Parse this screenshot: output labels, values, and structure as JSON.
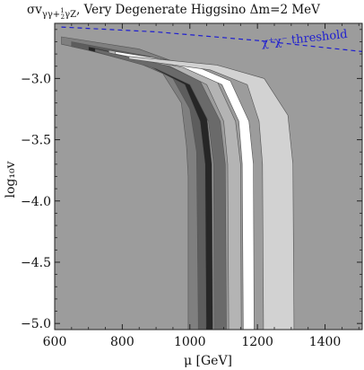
{
  "chart_data": {
    "type": "contour",
    "title": "σv_{γγ+½γZ}, Very Degenerate Higgsino Δm=2 MeV",
    "title_parts": {
      "main": "σv",
      "subscript": "γγ+",
      "frac_num": "1",
      "frac_den": "2",
      "subscript_tail": "γZ",
      "rest": ", Very Degenerate Higgsino Δm=2 MeV"
    },
    "xlabel": "μ [GeV]",
    "ylabel": "log₁₀v",
    "xlim": [
      600,
      1510
    ],
    "ylim": [
      -5.05,
      -2.55
    ],
    "x_ticks": [
      600,
      800,
      1000,
      1200,
      1400
    ],
    "x_tick_labels": [
      "600",
      "800",
      "1000",
      "1200",
      "1400"
    ],
    "y_ticks": [
      -3.0,
      -3.5,
      -4.0,
      -4.5,
      -5.0
    ],
    "y_tick_labels": [
      "−3.0",
      "−3.5",
      "−4.0",
      "−4.5",
      "−5.0"
    ],
    "grid": false,
    "background_color": "#9c9c9c",
    "annotation": {
      "label": "χ⁺χ⁻ threshold",
      "color": "#1f1fd0",
      "line_style": "dashed",
      "points": [
        [
          620,
          -2.58
        ],
        [
          900,
          -2.62
        ],
        [
          1200,
          -2.69
        ],
        [
          1510,
          -2.78
        ]
      ]
    },
    "bands": [
      {
        "color": "#7f7f7f",
        "upper": [
          [
            620,
            -2.66
          ],
          [
            850,
            -2.76
          ],
          [
            950,
            -2.86
          ],
          [
            1000,
            -3.05
          ],
          [
            1030,
            -3.35
          ],
          [
            1040,
            -3.7
          ],
          [
            1042,
            -5.0
          ]
        ],
        "lower": [
          [
            620,
            -2.72
          ],
          [
            820,
            -2.84
          ],
          [
            920,
            -2.96
          ],
          [
            975,
            -3.2
          ],
          [
            990,
            -3.55
          ],
          [
            995,
            -3.8
          ],
          [
            995,
            -5.0
          ]
        ]
      },
      {
        "color": "#5d5d5d",
        "upper": [
          [
            650,
            -2.7
          ],
          [
            880,
            -2.82
          ],
          [
            985,
            -2.98
          ],
          [
            1040,
            -3.3
          ],
          [
            1060,
            -3.7
          ],
          [
            1062,
            -5.0
          ]
        ],
        "lower": [
          [
            650,
            -2.74
          ],
          [
            860,
            -2.87
          ],
          [
            950,
            -3.0
          ],
          [
            1000,
            -3.25
          ],
          [
            1020,
            -3.6
          ],
          [
            1025,
            -5.0
          ]
        ]
      },
      {
        "color": "#262626",
        "upper": [
          [
            700,
            -2.74
          ],
          [
            900,
            -2.86
          ],
          [
            1000,
            -3.0
          ],
          [
            1050,
            -3.3
          ],
          [
            1065,
            -3.7
          ],
          [
            1068,
            -5.0
          ]
        ],
        "lower": [
          [
            700,
            -2.77
          ],
          [
            880,
            -2.9
          ],
          [
            985,
            -3.05
          ],
          [
            1030,
            -3.35
          ],
          [
            1045,
            -3.7
          ],
          [
            1048,
            -5.0
          ]
        ]
      },
      {
        "color": "#6a6a6a",
        "upper": [
          [
            720,
            -2.76
          ],
          [
            920,
            -2.88
          ],
          [
            1030,
            -3.02
          ],
          [
            1090,
            -3.35
          ],
          [
            1105,
            -3.7
          ],
          [
            1108,
            -5.0
          ]
        ],
        "lower": [
          [
            720,
            -2.78
          ],
          [
            900,
            -2.92
          ],
          [
            1000,
            -3.05
          ],
          [
            1055,
            -3.35
          ],
          [
            1070,
            -3.7
          ],
          [
            1072,
            -5.0
          ]
        ]
      },
      {
        "color": "#b4b4b4",
        "upper": [
          [
            760,
            -2.77
          ],
          [
            960,
            -2.86
          ],
          [
            1080,
            -3.02
          ],
          [
            1135,
            -3.35
          ],
          [
            1150,
            -3.7
          ],
          [
            1152,
            -5.0
          ]
        ],
        "lower": [
          [
            760,
            -2.79
          ],
          [
            940,
            -2.9
          ],
          [
            1050,
            -3.05
          ],
          [
            1100,
            -3.35
          ],
          [
            1112,
            -3.7
          ],
          [
            1115,
            -5.0
          ]
        ]
      },
      {
        "color": "#ffffff",
        "upper": [
          [
            780,
            -2.78
          ],
          [
            1000,
            -2.88
          ],
          [
            1120,
            -3.02
          ],
          [
            1175,
            -3.35
          ],
          [
            1188,
            -3.7
          ],
          [
            1190,
            -5.0
          ]
        ],
        "lower": [
          [
            780,
            -2.8
          ],
          [
            980,
            -2.91
          ],
          [
            1095,
            -3.05
          ],
          [
            1145,
            -3.35
          ],
          [
            1155,
            -3.7
          ],
          [
            1158,
            -5.0
          ]
        ]
      },
      {
        "color": "#d2d2d2",
        "upper": [
          [
            820,
            -2.82
          ],
          [
            1080,
            -2.89
          ],
          [
            1220,
            -3.0
          ],
          [
            1290,
            -3.3
          ],
          [
            1305,
            -3.7
          ],
          [
            1308,
            -5.0
          ]
        ],
        "lower": [
          [
            820,
            -2.84
          ],
          [
            1060,
            -2.93
          ],
          [
            1170,
            -3.05
          ],
          [
            1205,
            -3.35
          ],
          [
            1215,
            -3.7
          ],
          [
            1218,
            -5.0
          ]
        ]
      }
    ]
  }
}
